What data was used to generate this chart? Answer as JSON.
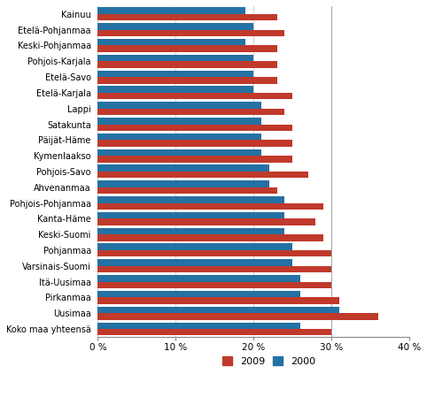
{
  "categories": [
    "Kainuu",
    "Etelä-Pohjanmaa",
    "Keski-Pohjanmaa",
    "Pohjois-Karjala",
    "Etelä-Savo",
    "Etelä-Karjala",
    "Lappi",
    "Satakunta",
    "Päijät-Häme",
    "Kymenlaakso",
    "Pohjois-Savo",
    "Ahvenanmaa",
    "Pohjois-Pohjanmaa",
    "Kanta-Häme",
    "Keski-Suomi",
    "Pohjanmaa",
    "Varsinais-Suomi",
    "Itä-Uusimaa",
    "Pirkanmaa",
    "Uusimaa",
    "Koko maa yhteensä"
  ],
  "values_2009": [
    23,
    24,
    23,
    23,
    23,
    25,
    24,
    25,
    25,
    25,
    27,
    23,
    29,
    28,
    29,
    30,
    30,
    30,
    31,
    36,
    30
  ],
  "values_2000": [
    19,
    20,
    19,
    20,
    20,
    20,
    21,
    21,
    21,
    21,
    22,
    22,
    24,
    24,
    24,
    25,
    25,
    26,
    26,
    31,
    26
  ],
  "color_2009": "#c0392b",
  "color_2000": "#2471a3",
  "xlim": [
    0,
    40
  ],
  "xticks": [
    0,
    10,
    20,
    30,
    40
  ],
  "bar_height": 0.42,
  "figsize": [
    4.82,
    4.49
  ],
  "dpi": 100,
  "legend_labels": [
    "2009",
    "2000"
  ],
  "vline_x": 30,
  "bg_color": "#ffffff",
  "grid_color": "#c8c8c8"
}
